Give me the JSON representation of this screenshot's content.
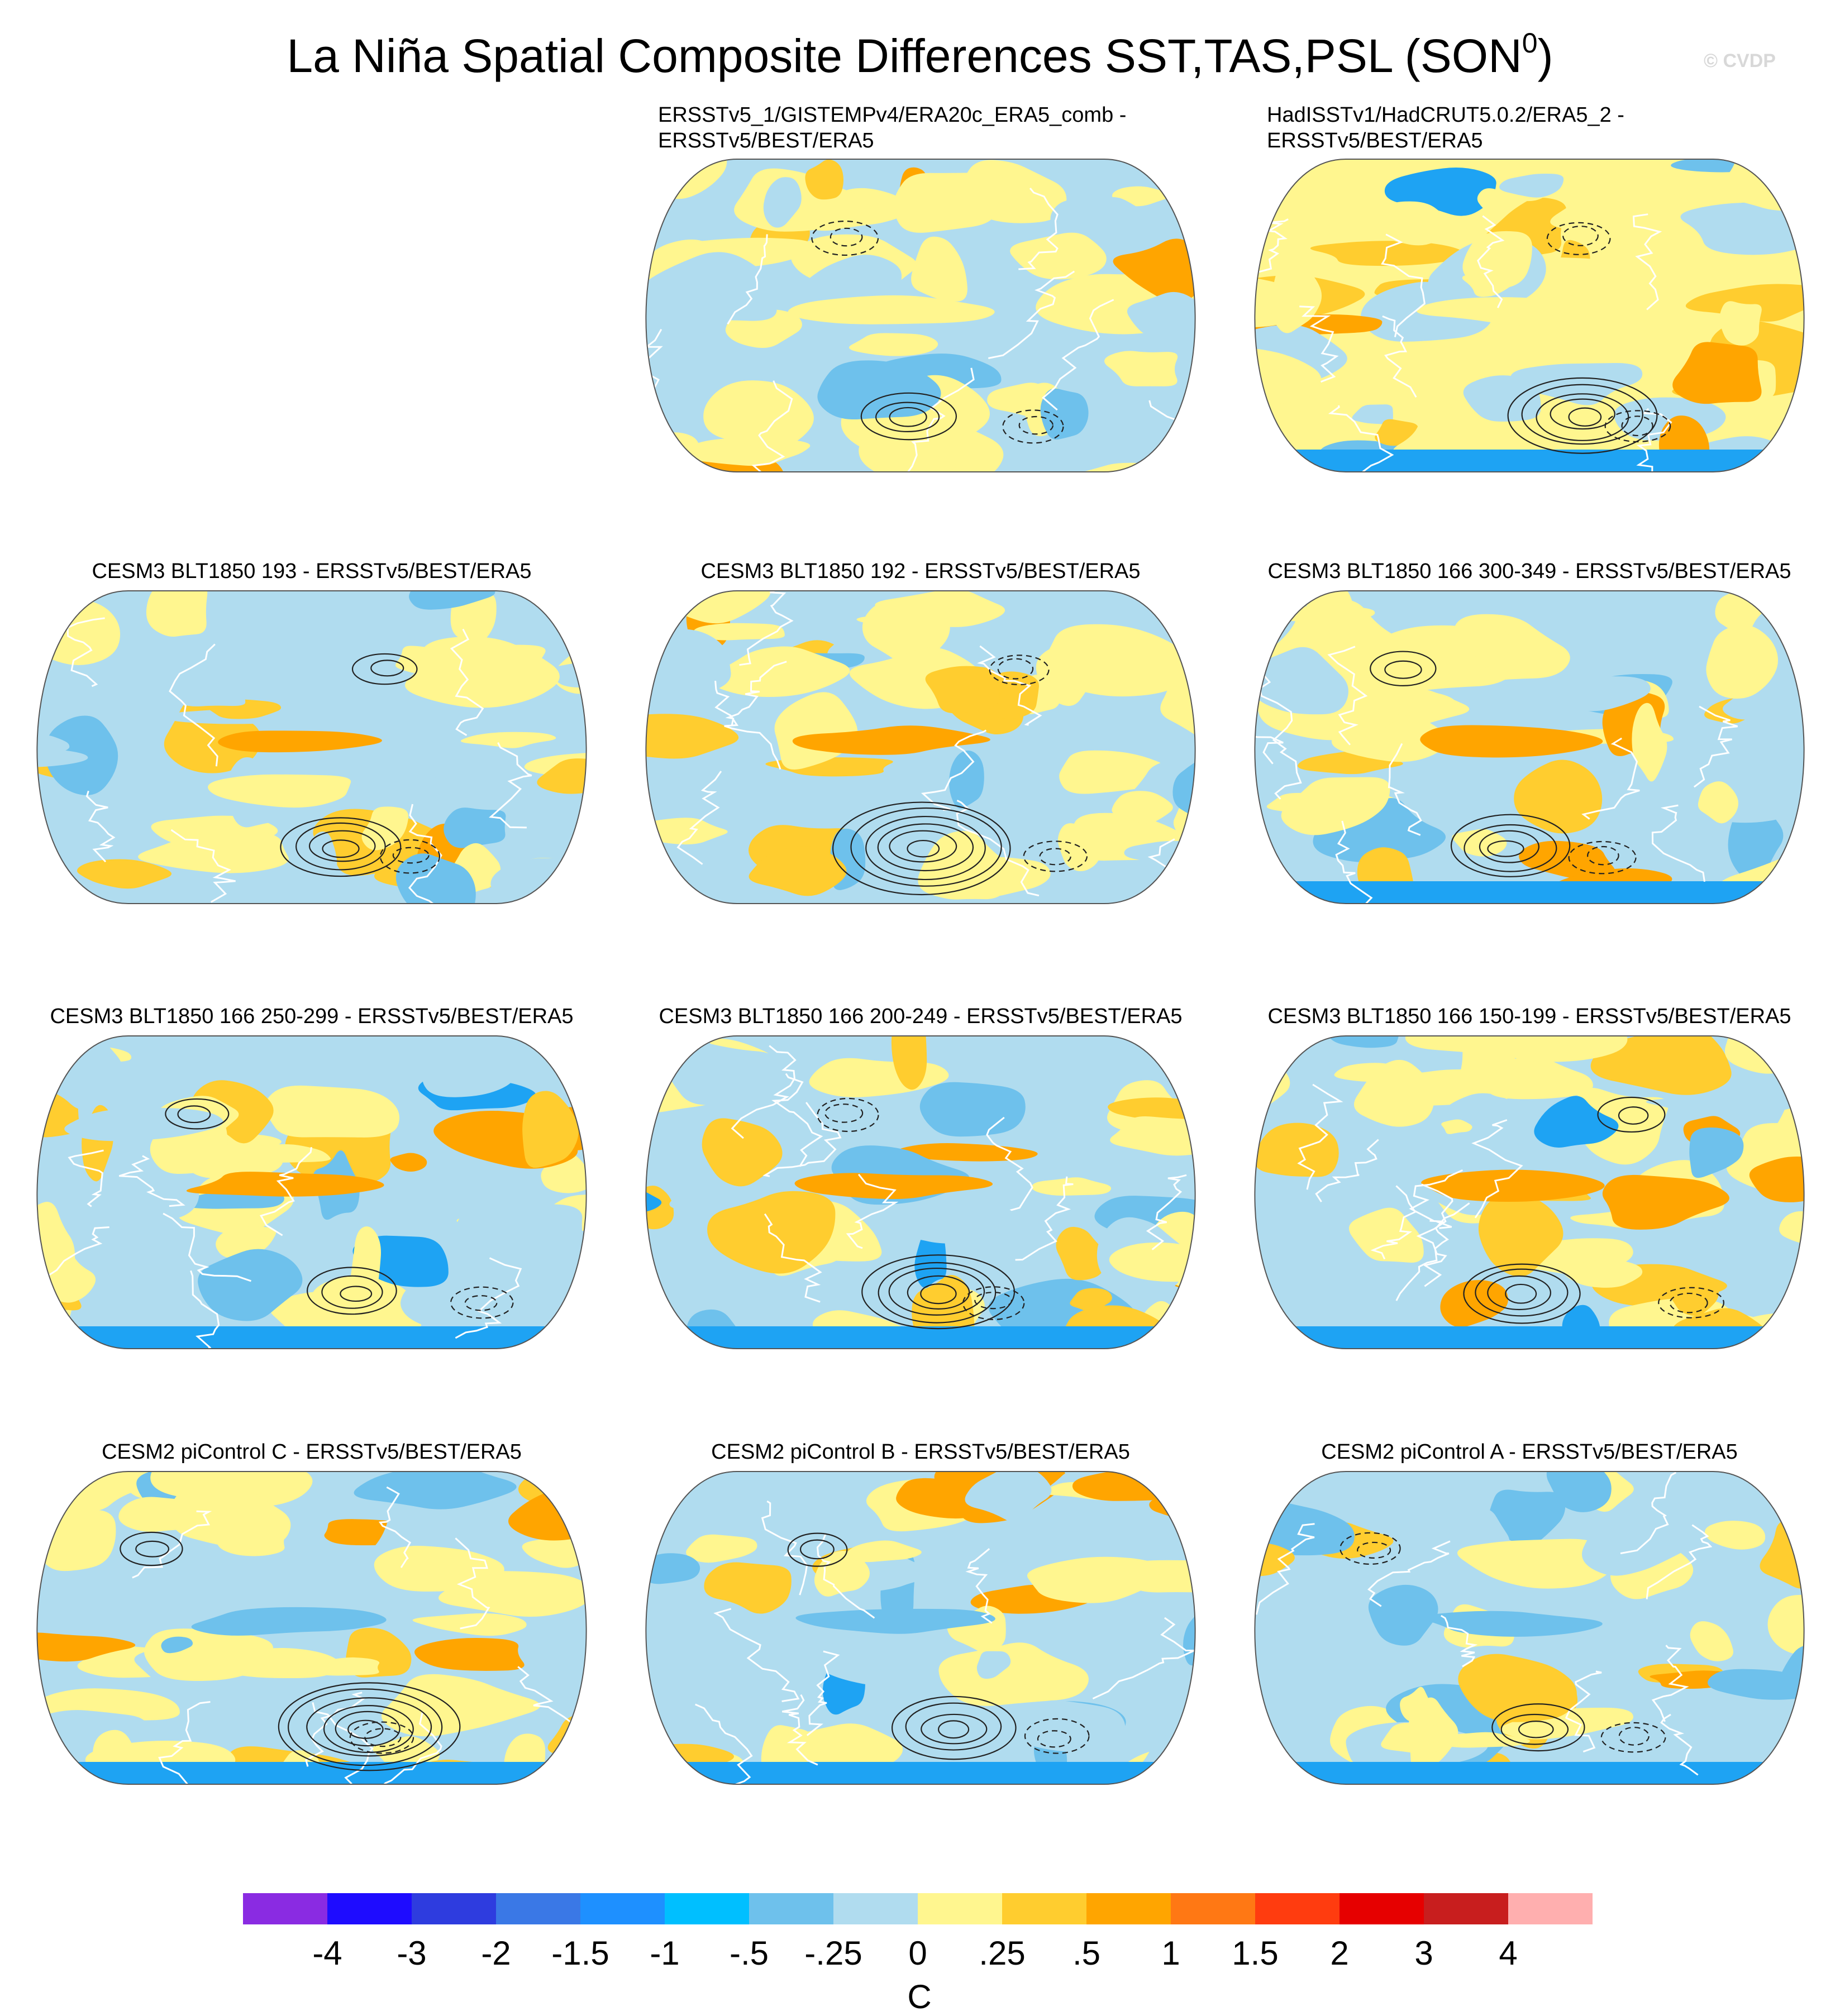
{
  "title": {
    "main": "La Niña Spatial Composite Differences SST,TAS,PSL (SON",
    "superscript": "0",
    "closing": ")",
    "watermark": "© CVDP"
  },
  "chart_data": [
    {
      "type": "heatmap",
      "title_line1": "ERSSTv5_1/GISTEMPv4/ERA20c_ERA5_comb -",
      "title_line2": "ERSSTv5/BEST/ERA5",
      "projection": "robinson",
      "variables": [
        "SST",
        "TAS",
        "PSL"
      ],
      "season": "SON",
      "colors": [
        "#fff68f",
        "#b0dcef",
        "#ffcd2f",
        "#6ec1ec",
        "#ffa500",
        "#1ea3f3"
      ]
    },
    {
      "type": "heatmap",
      "title_line1": "HadISSTv1/HadCRUT5.0.2/ERA5_2 -",
      "title_line2": "ERSSTv5/BEST/ERA5",
      "projection": "robinson",
      "variables": [
        "SST",
        "TAS",
        "PSL"
      ],
      "season": "SON",
      "colors": [
        "#fff68f",
        "#b0dcef",
        "#ffcd2f",
        "#6ec1ec",
        "#ffa500",
        "#1ea3f3"
      ]
    },
    {
      "type": "heatmap",
      "title_line1": "CESM3 BLT1850 193 - ERSSTv5/BEST/ERA5",
      "title_line2": "",
      "projection": "robinson",
      "variables": [
        "SST",
        "TAS",
        "PSL"
      ],
      "season": "SON",
      "colors": [
        "#fff68f",
        "#b0dcef",
        "#ffcd2f",
        "#6ec1ec",
        "#ffa500",
        "#1ea3f3"
      ]
    },
    {
      "type": "heatmap",
      "title_line1": "CESM3 BLT1850 192 - ERSSTv5/BEST/ERA5",
      "title_line2": "",
      "projection": "robinson",
      "variables": [
        "SST",
        "TAS",
        "PSL"
      ],
      "season": "SON",
      "colors": [
        "#fff68f",
        "#b0dcef",
        "#ffcd2f",
        "#6ec1ec",
        "#ffa500",
        "#e81e0c"
      ]
    },
    {
      "type": "heatmap",
      "title_line1": "CESM3 BLT1850 166 300-349 - ERSSTv5/BEST/ERA5",
      "title_line2": "",
      "projection": "robinson",
      "variables": [
        "SST",
        "TAS",
        "PSL"
      ],
      "season": "SON",
      "colors": [
        "#fff68f",
        "#b0dcef",
        "#ffcd2f",
        "#6ec1ec",
        "#ffa500",
        "#1ea3f3"
      ]
    },
    {
      "type": "heatmap",
      "title_line1": "CESM3 BLT1850 166 250-299 - ERSSTv5/BEST/ERA5",
      "title_line2": "",
      "projection": "robinson",
      "variables": [
        "SST",
        "TAS",
        "PSL"
      ],
      "season": "SON",
      "colors": [
        "#fff68f",
        "#b0dcef",
        "#ffcd2f",
        "#6ec1ec",
        "#ffa500",
        "#1ea3f3"
      ]
    },
    {
      "type": "heatmap",
      "title_line1": "CESM3 BLT1850 166 200-249 - ERSSTv5/BEST/ERA5",
      "title_line2": "",
      "projection": "robinson",
      "variables": [
        "SST",
        "TAS",
        "PSL"
      ],
      "season": "SON",
      "colors": [
        "#fff68f",
        "#b0dcef",
        "#ffcd2f",
        "#6ec1ec",
        "#ffa500",
        "#1ea3f3"
      ]
    },
    {
      "type": "heatmap",
      "title_line1": "CESM3 BLT1850 166 150-199 - ERSSTv5/BEST/ERA5",
      "title_line2": "",
      "projection": "robinson",
      "variables": [
        "SST",
        "TAS",
        "PSL"
      ],
      "season": "SON",
      "colors": [
        "#fff68f",
        "#b0dcef",
        "#ffcd2f",
        "#6ec1ec",
        "#ffa500",
        "#1ea3f3"
      ]
    },
    {
      "type": "heatmap",
      "title_line1": "CESM2 piControl C - ERSSTv5/BEST/ERA5",
      "title_line2": "",
      "projection": "robinson",
      "variables": [
        "SST",
        "TAS",
        "PSL"
      ],
      "season": "SON",
      "colors": [
        "#fff68f",
        "#b0dcef",
        "#ffcd2f",
        "#6ec1ec",
        "#ffa500",
        "#1ea3f3"
      ]
    },
    {
      "type": "heatmap",
      "title_line1": "CESM2 piControl B - ERSSTv5/BEST/ERA5",
      "title_line2": "",
      "projection": "robinson",
      "variables": [
        "SST",
        "TAS",
        "PSL"
      ],
      "season": "SON",
      "colors": [
        "#fff68f",
        "#b0dcef",
        "#ffcd2f",
        "#6ec1ec",
        "#ffa500",
        "#1ea3f3"
      ]
    },
    {
      "type": "heatmap",
      "title_line1": "CESM2 piControl A - ERSSTv5/BEST/ERA5",
      "title_line2": "",
      "projection": "robinson",
      "variables": [
        "SST",
        "TAS",
        "PSL"
      ],
      "season": "SON",
      "colors": [
        "#fff68f",
        "#b0dcef",
        "#ffcd2f",
        "#6ec1ec",
        "#ffa500",
        "#1ea3f3"
      ]
    }
  ],
  "colorbar": {
    "label": "C",
    "ticks": [
      "-4",
      "-3",
      "-2",
      "-1.5",
      "-1",
      "-.5",
      "-.25",
      "0",
      ".25",
      ".5",
      "1",
      "1.5",
      "2",
      "3",
      "4"
    ],
    "colors": [
      "#8a2be2",
      "#1e0cff",
      "#2e3cdf",
      "#3a78e6",
      "#1e90ff",
      "#00bfff",
      "#6ec1ec",
      "#b0dcef",
      "#fff68f",
      "#ffcd2f",
      "#ffa500",
      "#ff7814",
      "#ff3c0f",
      "#e60000",
      "#c81e1e",
      "#ffafaf"
    ]
  }
}
